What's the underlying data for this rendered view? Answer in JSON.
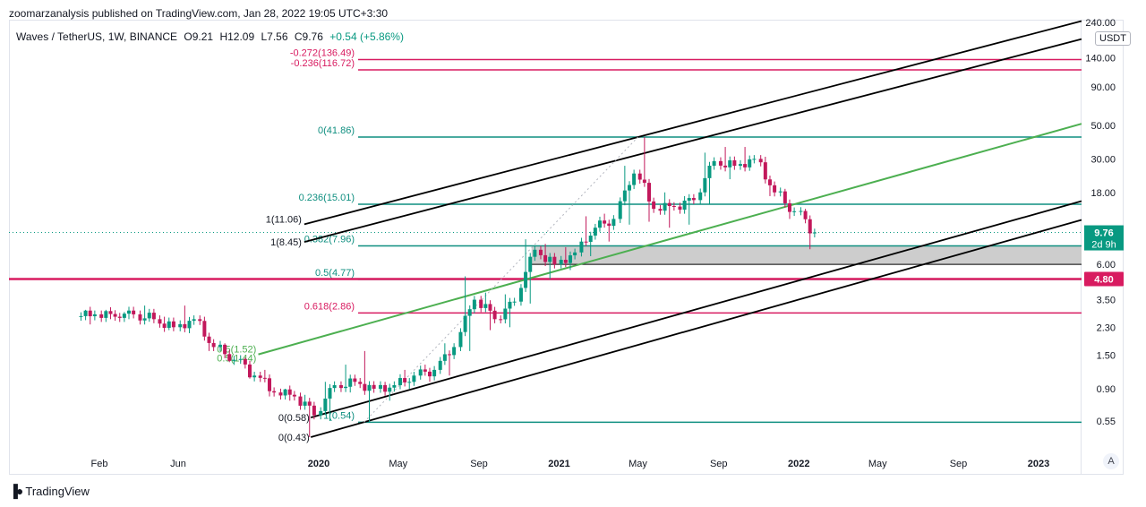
{
  "header": {
    "published_by": "zoomarzanalysis published on TradingView.com, Jan 28, 2022 19:05 UTC+3:30",
    "symbol": "Waves / TetherUS, 1W, BINANCE",
    "open": "O9.21",
    "high": "H12.09",
    "low": "L7.56",
    "close": "C9.76",
    "change": "+0.54 (+5.86%)"
  },
  "price_axis": {
    "currency_label": "USDT",
    "scale_label": "A"
  },
  "footer": {
    "brand": "TradingView"
  },
  "colors": {
    "up": "#089981",
    "down": "#c2185b",
    "fib_teal": "#0f8f80",
    "fib_pink": "#d81b60",
    "green_line": "#4caf50",
    "channel": "#000000",
    "zone_fill": "#c8c8c8"
  },
  "chart_data": {
    "type": "candlestick",
    "title": "",
    "scale": "log",
    "ylim": [
      0.38,
      240
    ],
    "xlabel": "",
    "ylabel": "",
    "x_ticks": [
      "Feb",
      "Jun",
      "2020",
      "May",
      "Sep",
      "2021",
      "May",
      "Sep",
      "2022",
      "May",
      "Sep",
      "2023"
    ],
    "x_tick_dates": [
      "2019-02-01",
      "2019-06-01",
      "2020-01-01",
      "2020-05-01",
      "2020-09-01",
      "2021-01-01",
      "2021-05-01",
      "2021-09-01",
      "2022-01-01",
      "2022-05-01",
      "2022-09-01",
      "2023-01-01"
    ],
    "y_ticks": [
      "240.00",
      "140.00",
      "90.00",
      "50.00",
      "30.00",
      "18.00",
      "6.00",
      "3.50",
      "2.30",
      "1.50",
      "0.90",
      "0.55"
    ],
    "y_tick_values": [
      240,
      140,
      90,
      50,
      30,
      18,
      6,
      3.5,
      2.3,
      1.5,
      0.9,
      0.55
    ],
    "last_price": {
      "value": 9.76,
      "label": "9.76",
      "countdown": "2d 9h"
    },
    "marker_price": {
      "value": 4.8,
      "label": "4.80"
    },
    "candles_monthly_approx": [
      {
        "date": "2019-01",
        "o": 2.7,
        "h": 3.0,
        "l": 2.4,
        "c": 2.8
      },
      {
        "date": "2019-02",
        "o": 2.8,
        "h": 3.0,
        "l": 2.6,
        "c": 2.7
      },
      {
        "date": "2019-03",
        "o": 2.7,
        "h": 2.9,
        "l": 2.6,
        "c": 2.8
      },
      {
        "date": "2019-04",
        "o": 2.8,
        "h": 3.2,
        "l": 2.5,
        "c": 2.6
      },
      {
        "date": "2019-05",
        "o": 2.6,
        "h": 2.7,
        "l": 2.2,
        "c": 2.3
      },
      {
        "date": "2019-06",
        "o": 2.3,
        "h": 3.2,
        "l": 2.1,
        "c": 2.6
      },
      {
        "date": "2019-07",
        "o": 2.6,
        "h": 2.7,
        "l": 1.6,
        "c": 1.7
      },
      {
        "date": "2019-08",
        "o": 1.7,
        "h": 1.8,
        "l": 1.35,
        "c": 1.4
      },
      {
        "date": "2019-09",
        "o": 1.4,
        "h": 1.45,
        "l": 1.05,
        "c": 1.1
      },
      {
        "date": "2019-10",
        "o": 1.1,
        "h": 1.2,
        "l": 0.8,
        "c": 0.85
      },
      {
        "date": "2019-11",
        "o": 0.85,
        "h": 0.9,
        "l": 0.75,
        "c": 0.8
      },
      {
        "date": "2019-12",
        "o": 0.8,
        "h": 0.82,
        "l": 0.43,
        "c": 0.6
      },
      {
        "date": "2020-01",
        "o": 0.6,
        "h": 1.0,
        "l": 0.55,
        "c": 0.95
      },
      {
        "date": "2020-02",
        "o": 0.95,
        "h": 1.3,
        "l": 0.85,
        "c": 1.0
      },
      {
        "date": "2020-03",
        "o": 1.0,
        "h": 1.6,
        "l": 0.54,
        "c": 0.9
      },
      {
        "date": "2020-04",
        "o": 0.9,
        "h": 1.0,
        "l": 0.75,
        "c": 0.95
      },
      {
        "date": "2020-05",
        "o": 0.95,
        "h": 1.2,
        "l": 0.9,
        "c": 1.1
      },
      {
        "date": "2020-06",
        "o": 1.1,
        "h": 1.3,
        "l": 1.0,
        "c": 1.2
      },
      {
        "date": "2020-07",
        "o": 1.2,
        "h": 1.8,
        "l": 1.1,
        "c": 1.7
      },
      {
        "date": "2020-08",
        "o": 1.7,
        "h": 5.0,
        "l": 1.6,
        "c": 3.5
      },
      {
        "date": "2020-09",
        "o": 3.5,
        "h": 3.9,
        "l": 2.2,
        "c": 2.6
      },
      {
        "date": "2020-10",
        "o": 2.6,
        "h": 3.8,
        "l": 2.3,
        "c": 3.4
      },
      {
        "date": "2020-11",
        "o": 3.4,
        "h": 8.8,
        "l": 3.3,
        "c": 7.5
      },
      {
        "date": "2020-12",
        "o": 7.5,
        "h": 8.2,
        "l": 4.8,
        "c": 6.0
      },
      {
        "date": "2021-01",
        "o": 6.0,
        "h": 7.8,
        "l": 5.5,
        "c": 7.2
      },
      {
        "date": "2021-02",
        "o": 7.2,
        "h": 12.5,
        "l": 6.8,
        "c": 10.5
      },
      {
        "date": "2021-03",
        "o": 10.5,
        "h": 13.0,
        "l": 8.5,
        "c": 12.0
      },
      {
        "date": "2021-04",
        "o": 12.0,
        "h": 27.0,
        "l": 11.0,
        "c": 24.0
      },
      {
        "date": "2021-05",
        "o": 24.0,
        "h": 41.86,
        "l": 11.5,
        "c": 14.0
      },
      {
        "date": "2021-06",
        "o": 14.0,
        "h": 18.0,
        "l": 10.5,
        "c": 14.5
      },
      {
        "date": "2021-07",
        "o": 14.5,
        "h": 17.0,
        "l": 11.0,
        "c": 16.0
      },
      {
        "date": "2021-08",
        "o": 16.0,
        "h": 33.0,
        "l": 15.0,
        "c": 29.0
      },
      {
        "date": "2021-09",
        "o": 29.0,
        "h": 36.0,
        "l": 22.0,
        "c": 27.0
      },
      {
        "date": "2021-10",
        "o": 27.0,
        "h": 36.0,
        "l": 25.0,
        "c": 30.0
      },
      {
        "date": "2021-11",
        "o": 30.0,
        "h": 31.0,
        "l": 17.0,
        "c": 18.0
      },
      {
        "date": "2021-12",
        "o": 18.0,
        "h": 19.0,
        "l": 12.0,
        "c": 13.5
      },
      {
        "date": "2022-01",
        "o": 13.5,
        "h": 14.0,
        "l": 7.56,
        "c": 9.76
      }
    ],
    "fib_levels": [
      {
        "label": "-0.272(136.49)",
        "value": 136.49,
        "color": "#d81b60"
      },
      {
        "label": "-0.236(116.72)",
        "value": 116.72,
        "color": "#d81b60"
      },
      {
        "label": "0(41.86)",
        "value": 41.86,
        "color": "#0f8f80"
      },
      {
        "label": "0.236(15.01)",
        "value": 15.01,
        "color": "#0f8f80"
      },
      {
        "label": "0.382(7.96)",
        "value": 7.96,
        "color": "#0f8f80"
      },
      {
        "label": "0.5(4.77)",
        "value": 4.77,
        "color": "#0f8f80"
      },
      {
        "label": "0.618(2.86)",
        "value": 2.86,
        "color": "#d81b60"
      },
      {
        "label": "1(0.54)",
        "value": 0.54,
        "color": "#0f8f80"
      }
    ],
    "channel_labels": [
      {
        "label": "1(11.06)",
        "value": 11.06
      },
      {
        "label": "1(8.45)",
        "value": 8.45
      },
      {
        "label": "0(0.58)",
        "value": 0.58
      },
      {
        "label": "0(0.43)",
        "value": 0.43
      }
    ],
    "green_labels": [
      "0.5(1.52)",
      "0.5(1.44)"
    ],
    "support_zone": {
      "low": 6.0,
      "high": 7.96
    }
  }
}
